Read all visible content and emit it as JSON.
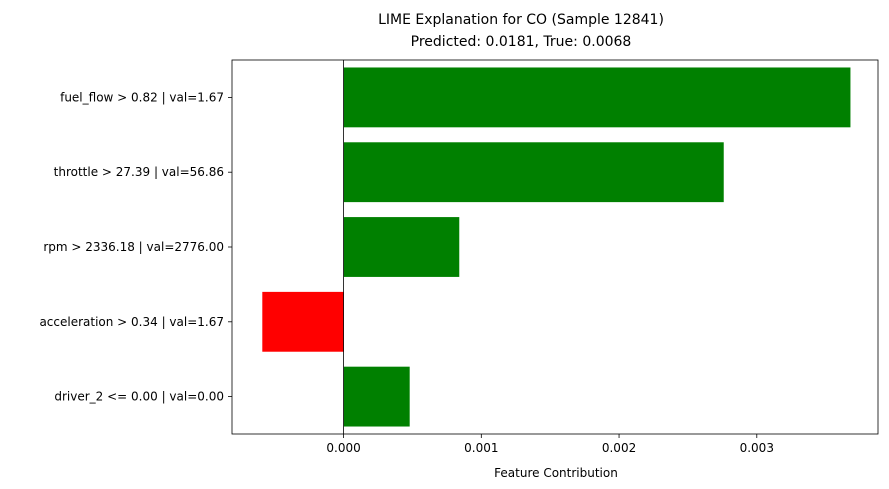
{
  "chart_data": {
    "type": "bar",
    "orientation": "horizontal",
    "title": "LIME Explanation for CO (Sample 12841)",
    "subtitle": "Predicted: 0.0181, True: 0.0068",
    "xlabel": "Feature Contribution",
    "ylabel": "",
    "categories": [
      "fuel_flow > 0.82 | val=1.67",
      "throttle > 27.39 | val=56.86",
      "rpm > 2336.18 | val=2776.00",
      "acceleration > 0.34 | val=1.67",
      "driver_2 <= 0.00 | val=0.00"
    ],
    "values": [
      0.00368,
      0.00276,
      0.00084,
      -0.00059,
      0.00048
    ],
    "xlim": [
      -0.00081,
      0.00388
    ],
    "xticks": [
      0,
      0.001,
      0.002,
      0.003
    ],
    "xtick_labels": [
      "0.000",
      "0.001",
      "0.002",
      "0.003"
    ],
    "positive_color": "#008000",
    "negative_color": "#ff0000",
    "zero_line": true,
    "grid": false,
    "legend": "none"
  }
}
